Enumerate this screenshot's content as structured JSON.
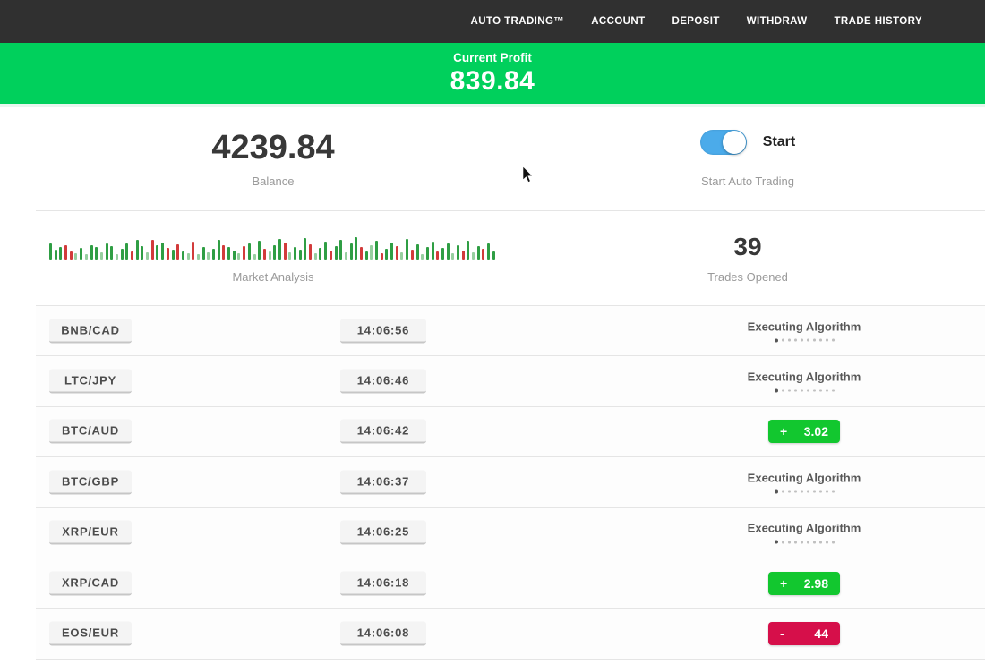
{
  "navbar": {
    "items": [
      "AUTO TRADING™",
      "ACCOUNT",
      "DEPOSIT",
      "WITHDRAW",
      "TRADE HISTORY"
    ]
  },
  "banner": {
    "label": "Current Profit",
    "value": "839.84"
  },
  "stats": {
    "balance": {
      "value": "4239.84",
      "label": "Balance"
    },
    "auto_trading": {
      "toggle_state": "on",
      "toggle_label": "Start",
      "label": "Start Auto Trading"
    },
    "market_analysis": {
      "label": "Market Analysis"
    },
    "trades_opened": {
      "value": "39",
      "label": "Trades Opened"
    }
  },
  "chart_data": {
    "type": "bar",
    "title": "Market Analysis",
    "ylabel": "",
    "xlabel": "",
    "legend": false,
    "palette": {
      "g": "#2f9e44",
      "r": "#d23b3b",
      "G": "#97cfa0",
      "R": "#e5a8a8"
    },
    "heights": [
      18,
      11,
      14,
      16,
      9,
      7,
      13,
      6,
      16,
      14,
      8,
      18,
      15,
      6,
      12,
      18,
      9,
      22,
      15,
      8,
      22,
      16,
      19,
      13,
      11,
      17,
      9,
      7,
      20,
      6,
      14,
      8,
      12,
      22,
      16,
      14,
      10,
      7,
      15,
      18,
      6,
      21,
      12,
      9,
      16,
      23,
      19,
      8,
      14,
      11,
      24,
      17,
      7,
      13,
      20,
      10,
      15,
      22,
      8,
      18,
      25,
      14,
      9,
      16,
      21,
      7,
      12,
      19,
      15,
      8,
      23,
      11,
      17,
      6,
      14,
      20,
      9,
      13,
      18,
      7,
      16,
      10,
      21,
      8,
      15,
      12,
      18,
      9
    ],
    "colors": [
      "g",
      "g",
      "g",
      "r",
      "r",
      "G",
      "g",
      "G",
      "g",
      "g",
      "G",
      "g",
      "g",
      "G",
      "g",
      "g",
      "r",
      "g",
      "g",
      "G",
      "r",
      "g",
      "g",
      "r",
      "g",
      "r",
      "g",
      "G",
      "r",
      "G",
      "g",
      "G",
      "g",
      "g",
      "r",
      "g",
      "g",
      "G",
      "r",
      "g",
      "G",
      "g",
      "r",
      "G",
      "g",
      "g",
      "r",
      "G",
      "g",
      "g",
      "g",
      "r",
      "G",
      "g",
      "g",
      "r",
      "g",
      "g",
      "G",
      "g",
      "g",
      "r",
      "g",
      "G",
      "g",
      "r",
      "g",
      "g",
      "r",
      "G",
      "g",
      "r",
      "g",
      "G",
      "g",
      "g",
      "r",
      "g",
      "g",
      "G",
      "g",
      "r",
      "g",
      "G",
      "g",
      "r",
      "g",
      "g"
    ]
  },
  "status_dots": {
    "total": 10,
    "active": 1
  },
  "table": {
    "rows": [
      {
        "pair": "BNB/CAD",
        "time": "14:06:56",
        "status": "executing",
        "status_text": "Executing Algorithm"
      },
      {
        "pair": "LTC/JPY",
        "time": "14:06:46",
        "status": "executing",
        "status_text": "Executing Algorithm"
      },
      {
        "pair": "BTC/AUD",
        "time": "14:06:42",
        "status": "profit",
        "sign": "+",
        "value": "3.02"
      },
      {
        "pair": "BTC/GBP",
        "time": "14:06:37",
        "status": "executing",
        "status_text": "Executing Algorithm"
      },
      {
        "pair": "XRP/EUR",
        "time": "14:06:25",
        "status": "executing",
        "status_text": "Executing Algorithm"
      },
      {
        "pair": "XRP/CAD",
        "time": "14:06:18",
        "status": "profit",
        "sign": "+",
        "value": "2.98"
      },
      {
        "pair": "EOS/EUR",
        "time": "14:06:08",
        "status": "loss",
        "sign": "-",
        "value": "44"
      }
    ]
  },
  "colors": {
    "navbar_bg": "#303030",
    "banner_green": "#00d05c",
    "profit_badge_green": "#12c72f",
    "loss_badge_red": "#d60f4a",
    "toggle_blue": "#4babea"
  }
}
